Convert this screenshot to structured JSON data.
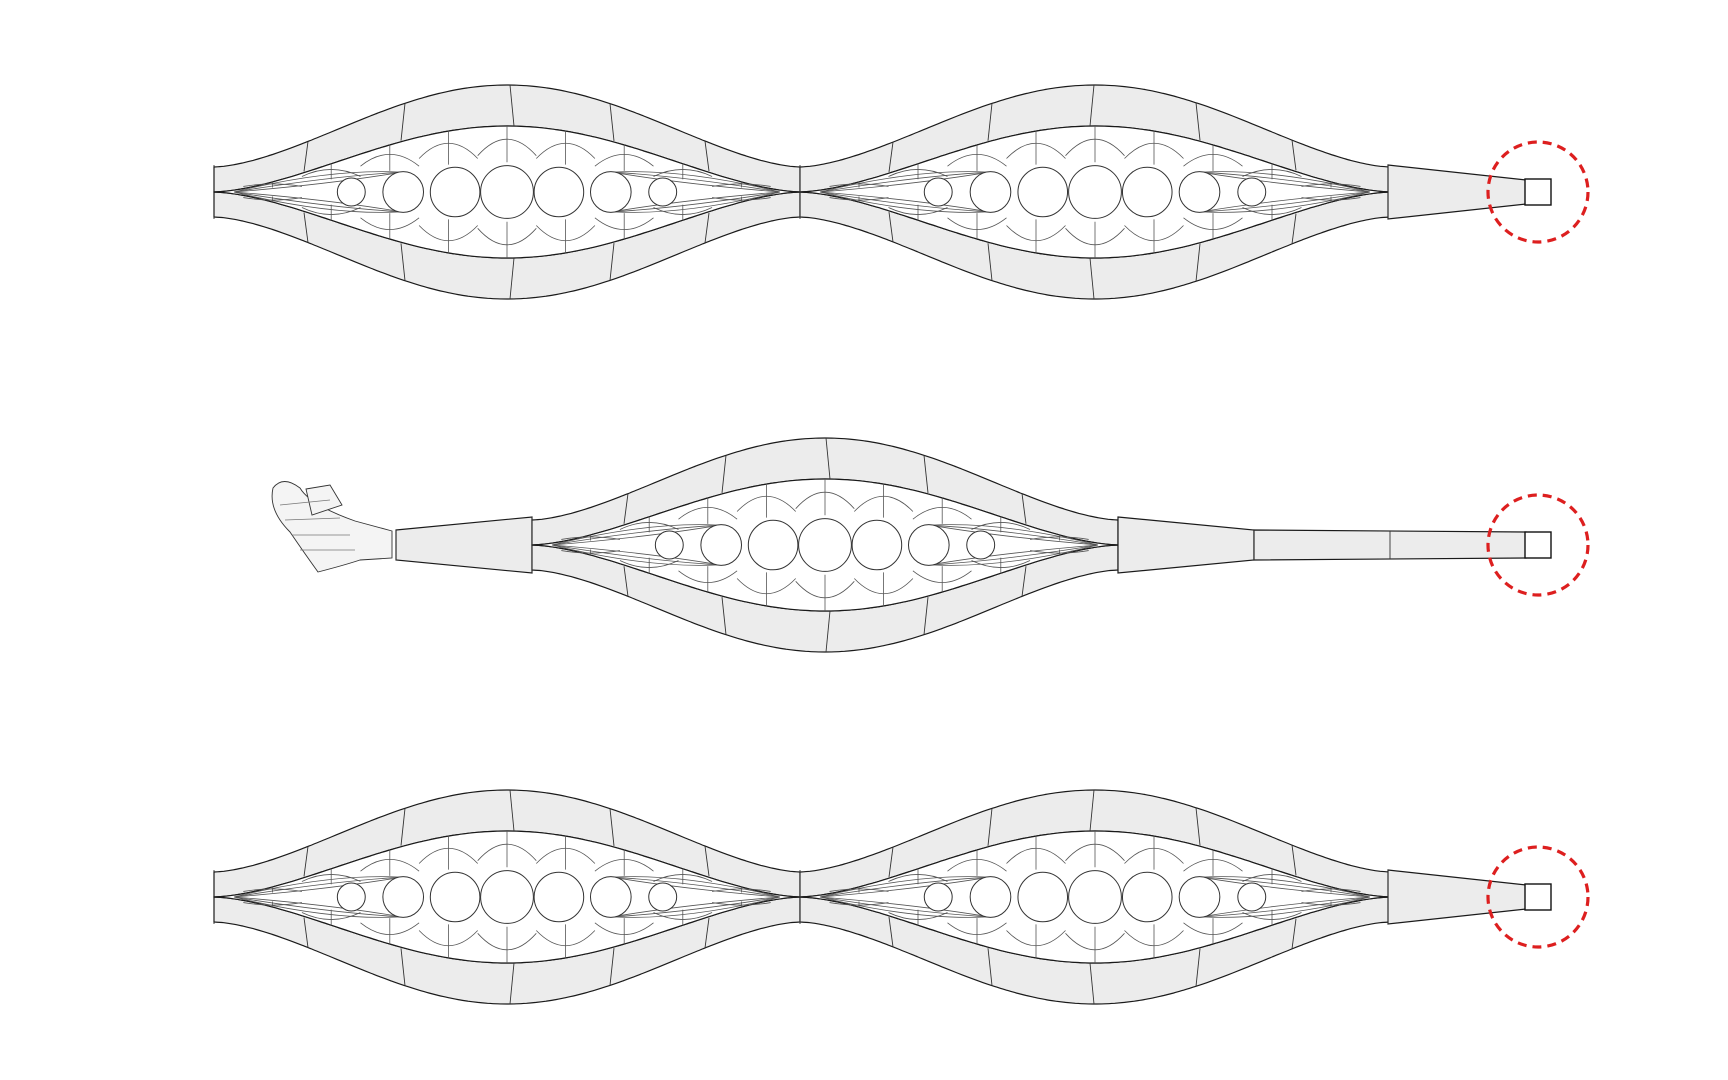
{
  "colors": {
    "background": "#ffffff",
    "band_fill": "#ececec",
    "outline": "#1a1a1a",
    "bubble_fill": "#ffffff",
    "marker": "#dd1f1f"
  },
  "figure": {
    "rows": [
      {
        "id": "top",
        "variant": "two-lobe",
        "bubble_rows": 2,
        "end_marker": "red-dashed-circle"
      },
      {
        "id": "middle",
        "variant": "single-lobe-with-curled-tip",
        "bubble_rows": 1,
        "end_marker": "red-dashed-circle"
      },
      {
        "id": "bottom",
        "variant": "two-lobe",
        "bubble_rows": 2,
        "end_marker": "red-dashed-circle"
      }
    ]
  }
}
